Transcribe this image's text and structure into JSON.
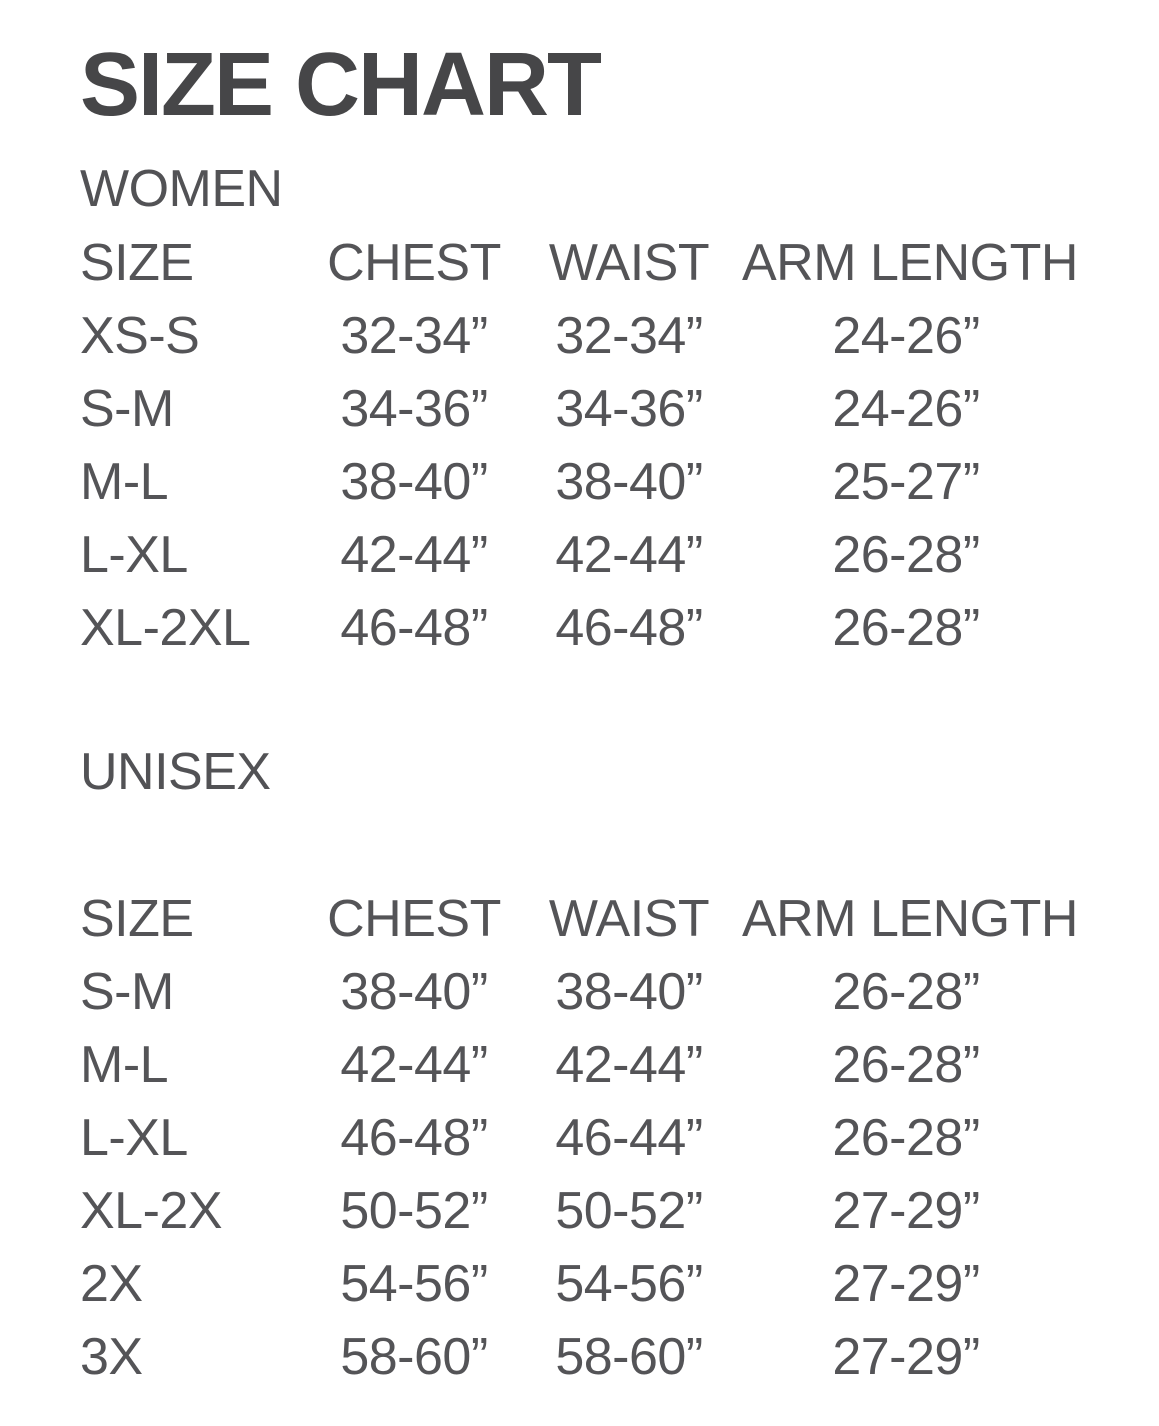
{
  "page": {
    "title": "SIZE CHART"
  },
  "colors": {
    "background": "#ffffff",
    "title_text": "#464648",
    "body_text": "#545457"
  },
  "women": {
    "label": "WOMEN",
    "headers": [
      "SIZE",
      "CHEST",
      "WAIST",
      "ARM LENGTH"
    ],
    "rows": [
      [
        "XS-S",
        "32-34”",
        "32-34”",
        "24-26”"
      ],
      [
        "S-M",
        "34-36”",
        "34-36”",
        "24-26”"
      ],
      [
        "M-L",
        "38-40”",
        "38-40”",
        "25-27”"
      ],
      [
        "L-XL",
        "42-44”",
        "42-44”",
        "26-28”"
      ],
      [
        "XL-2XL",
        "46-48”",
        "46-48”",
        "26-28”"
      ]
    ]
  },
  "unisex": {
    "label": "UNISEX",
    "headers": [
      "SIZE",
      "CHEST",
      "WAIST",
      "ARM LENGTH"
    ],
    "rows": [
      [
        "S-M",
        "38-40”",
        "38-40”",
        "26-28”"
      ],
      [
        "M-L",
        "42-44”",
        "42-44”",
        "26-28”"
      ],
      [
        "L-XL",
        "46-48”",
        "46-44”",
        "26-28”"
      ],
      [
        "XL-2X",
        "50-52”",
        "50-52”",
        "27-29”"
      ],
      [
        "2X",
        "54-56”",
        "54-56”",
        "27-29”"
      ],
      [
        "3X",
        "58-60”",
        "58-60”",
        "27-29”"
      ]
    ]
  }
}
